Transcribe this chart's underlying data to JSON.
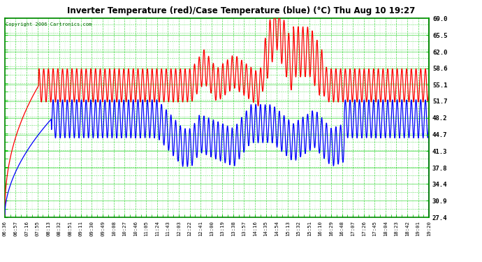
{
  "title": "Inverter Temperature (red)/Case Temperature (blue) (°C) Thu Aug 10 19:27",
  "copyright_text": "Copyright 2006 Cartronics.com",
  "yticks": [
    27.4,
    30.9,
    34.4,
    37.8,
    41.3,
    44.7,
    48.2,
    51.7,
    55.1,
    58.6,
    62.0,
    65.5,
    69.0
  ],
  "ymin": 27.4,
  "ymax": 69.0,
  "xtick_labels": [
    "06:36",
    "06:57",
    "07:16",
    "07:55",
    "08:13",
    "08:32",
    "08:51",
    "09:11",
    "09:30",
    "09:49",
    "10:08",
    "10:27",
    "10:46",
    "11:05",
    "11:24",
    "11:43",
    "12:03",
    "12:22",
    "12:41",
    "13:00",
    "13:19",
    "13:38",
    "13:57",
    "14:16",
    "14:35",
    "14:54",
    "15:13",
    "15:32",
    "15:51",
    "16:10",
    "16:29",
    "16:48",
    "17:07",
    "17:26",
    "17:45",
    "18:04",
    "18:23",
    "18:42",
    "19:01",
    "19:20"
  ],
  "plot_bg_color": "#ffffff",
  "outer_bg_color": "#ffffff",
  "grid_color_solid": "#00cc00",
  "grid_color_dash": "#00cc00",
  "red_color": "#ff0000",
  "blue_color": "#0000ff",
  "title_color": "#000000",
  "border_color": "#008800"
}
